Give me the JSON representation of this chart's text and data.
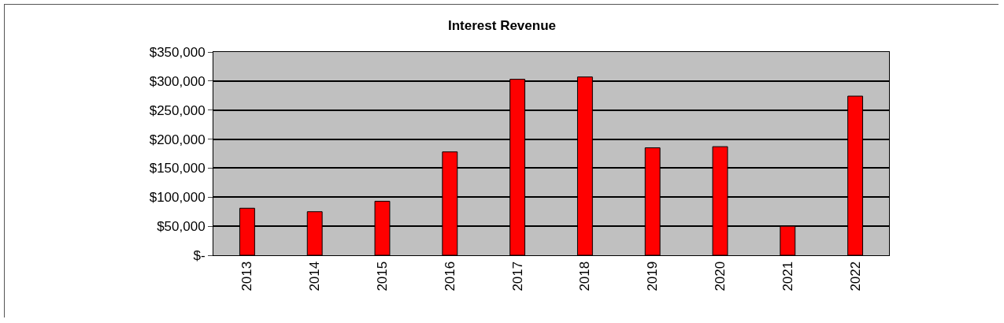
{
  "chart_data": {
    "type": "bar",
    "title": "Interest Revenue",
    "categories": [
      "2013",
      "2014",
      "2015",
      "2016",
      "2017",
      "2018",
      "2019",
      "2020",
      "2021",
      "2022"
    ],
    "values": [
      81000,
      75000,
      93000,
      178000,
      303000,
      307000,
      185000,
      187000,
      50000,
      274000
    ],
    "color": "#ff0000",
    "ylim": [
      0,
      350000
    ],
    "yticks": [
      {
        "value": 0,
        "label": "$-"
      },
      {
        "value": 50000,
        "label": "$50,000"
      },
      {
        "value": 100000,
        "label": "$100,000"
      },
      {
        "value": 150000,
        "label": "$150,000"
      },
      {
        "value": 200000,
        "label": "$200,000"
      },
      {
        "value": 250000,
        "label": "$250,000"
      },
      {
        "value": 300000,
        "label": "$300,000"
      },
      {
        "value": 350000,
        "label": "$350,000"
      }
    ],
    "grid": "y"
  }
}
